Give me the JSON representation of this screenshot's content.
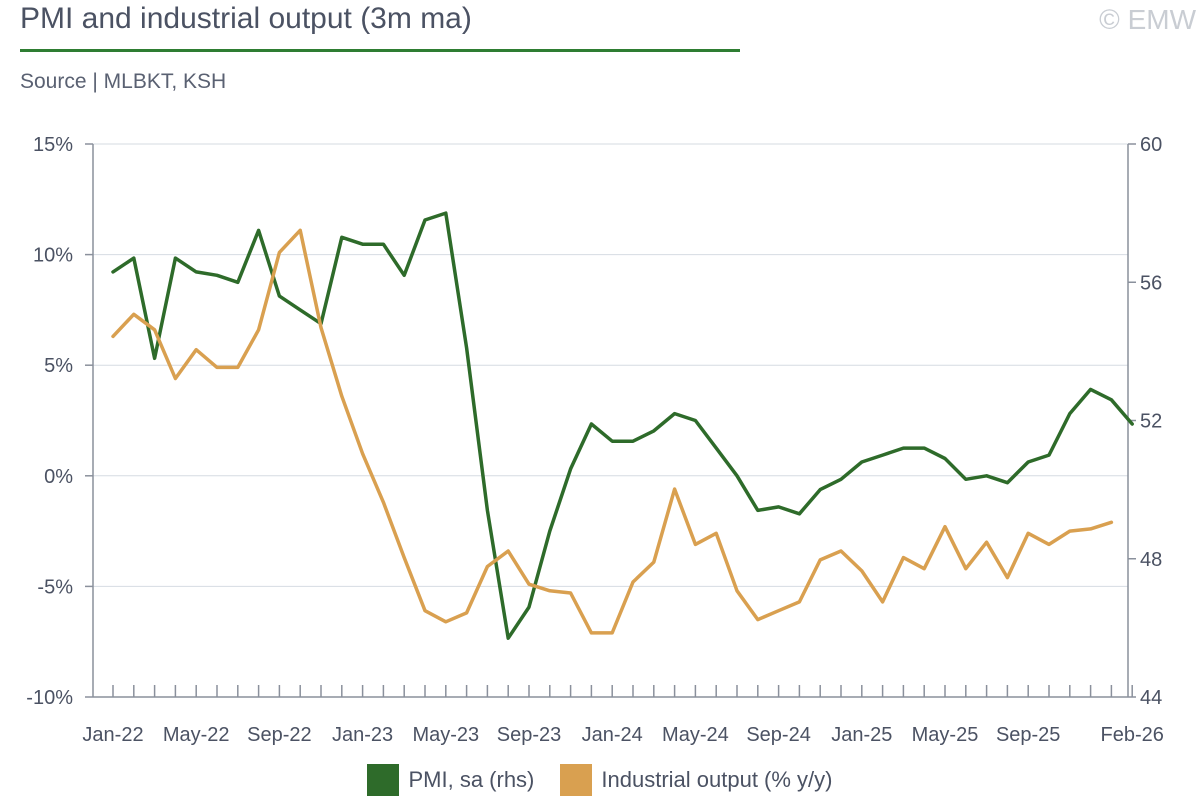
{
  "header": {
    "title": "PMI and industrial output (3m ma)",
    "source": "Source | MLBKT, KSH",
    "copyright": "© EMW"
  },
  "chart_data": {
    "type": "line",
    "x_tick_labels": [
      "Jan-22",
      "May-22",
      "Sep-22",
      "Jan-23",
      "May-23",
      "Sep-23",
      "Jan-24",
      "May-24",
      "Sep-24",
      "Jan-25",
      "May-25",
      "Sep-25",
      "Feb-26"
    ],
    "x": [
      "Jan-22",
      "Feb-22",
      "Mar-22",
      "Apr-22",
      "May-22",
      "Jun-22",
      "Jul-22",
      "Aug-22",
      "Sep-22",
      "Oct-22",
      "Nov-22",
      "Dec-22",
      "Jan-23",
      "Feb-23",
      "Mar-23",
      "Apr-23",
      "May-23",
      "Jun-23",
      "Jul-23",
      "Aug-23",
      "Sep-23",
      "Oct-23",
      "Nov-23",
      "Dec-23",
      "Jan-24",
      "Feb-24",
      "Mar-24",
      "Apr-24",
      "May-24",
      "Jun-24",
      "Jul-24",
      "Aug-24",
      "Sep-24",
      "Oct-24",
      "Nov-24",
      "Dec-24",
      "Jan-25",
      "Feb-25",
      "Mar-25",
      "Apr-25",
      "May-25",
      "Jun-25",
      "Jul-25",
      "Aug-25",
      "Sep-25",
      "Oct-25",
      "Nov-25",
      "Dec-25",
      "Jan-26",
      "Feb-26"
    ],
    "y_left": {
      "ylim": [
        -10,
        15
      ],
      "ticks": [
        -10,
        -5,
        0,
        5,
        10,
        15
      ],
      "tick_labels": [
        "-10%",
        "-5%",
        "0%",
        "5%",
        "10%",
        "15%"
      ]
    },
    "y_right": {
      "ylim": [
        44,
        60
      ],
      "ticks": [
        44,
        48,
        52,
        56,
        60
      ],
      "tick_labels": [
        "44",
        "48",
        "52",
        "56",
        "60"
      ]
    },
    "grid": "horizontal",
    "legend_position": "bottom",
    "series": [
      {
        "name": "PMI, sa (rhs)",
        "axis": "right",
        "color": "#2e6b2a",
        "values": [
          56.3,
          56.7,
          53.8,
          56.7,
          56.3,
          56.2,
          56.0,
          57.5,
          55.6,
          55.2,
          54.8,
          57.3,
          57.1,
          57.1,
          56.2,
          57.8,
          58.0,
          54.1,
          49.4,
          45.7,
          46.6,
          48.8,
          50.6,
          51.9,
          51.4,
          51.4,
          51.7,
          52.2,
          52.0,
          51.2,
          50.4,
          49.4,
          49.5,
          49.3,
          50.0,
          50.3,
          50.8,
          51.0,
          51.2,
          51.2,
          50.9,
          50.3,
          50.4,
          50.2,
          50.8,
          51.0,
          52.2,
          52.9,
          52.6,
          51.9
        ]
      },
      {
        "name": "Industrial output (% y/y)",
        "axis": "left",
        "color": "#d9a050",
        "values": [
          6.3,
          7.3,
          6.6,
          4.4,
          5.7,
          4.9,
          4.9,
          6.6,
          10.1,
          11.1,
          6.7,
          3.6,
          1.0,
          -1.2,
          -3.7,
          -6.1,
          -6.6,
          -6.2,
          -4.1,
          -3.4,
          -4.9,
          -5.2,
          -5.3,
          -7.1,
          -7.1,
          -4.8,
          -3.9,
          -0.6,
          -3.1,
          -2.6,
          -5.2,
          -6.5,
          -6.1,
          -5.7,
          -3.8,
          -3.4,
          -4.3,
          -5.7,
          -3.7,
          -4.2,
          -2.3,
          -4.2,
          -3.0,
          -4.6,
          -2.6,
          -3.1,
          -2.5,
          -2.4,
          -2.1,
          null
        ]
      }
    ]
  }
}
